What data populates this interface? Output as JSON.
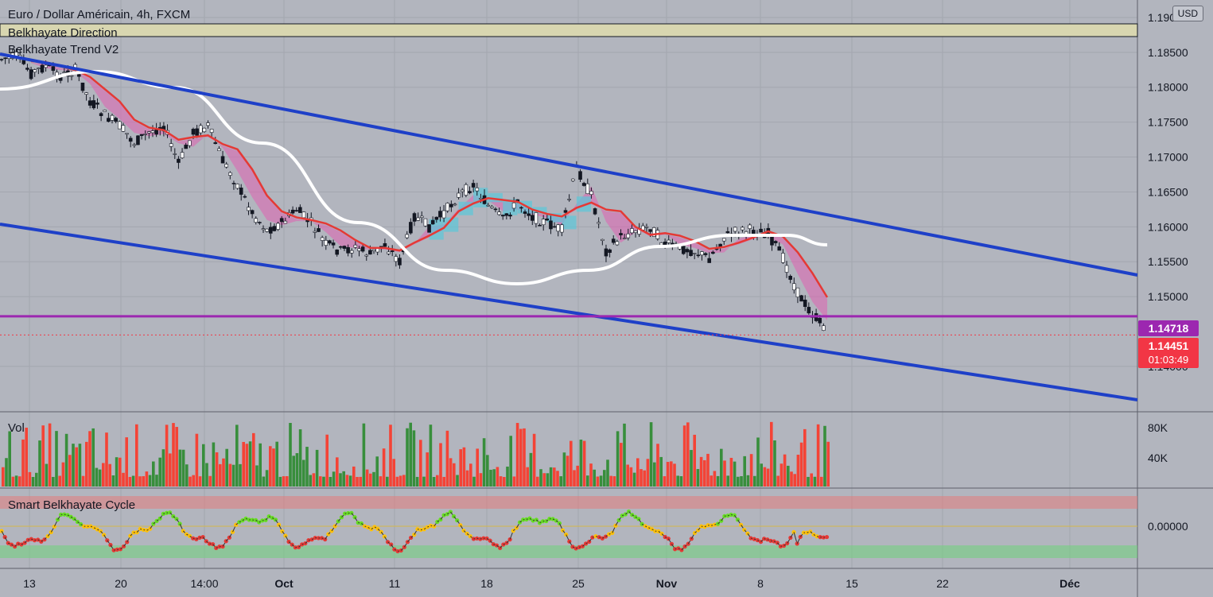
{
  "chart_data": {
    "type": "candlestick",
    "symbol": "Euro / Dollar Américain, 4h, FXCM",
    "indicators": [
      "Belkhayate Direction",
      "Belkhayate Trend V2",
      "Vol",
      "Smart Belkhayate Cycle"
    ],
    "currency": "USD",
    "price_axis": {
      "ticks": [
        "1.19000",
        "1.18500",
        "1.18000",
        "1.17500",
        "1.17000",
        "1.16500",
        "1.16000",
        "1.15500",
        "1.15000",
        "1.14000"
      ],
      "ylim": [
        1.1335,
        1.1925
      ]
    },
    "volume_axis": {
      "ticks": [
        "80K",
        "40K"
      ]
    },
    "cycle_axis": {
      "ticks": [
        "0.00000"
      ]
    },
    "time_axis": {
      "ticks": [
        "13",
        "20",
        "14:00",
        "Oct",
        "11",
        "18",
        "25",
        "Nov",
        "8",
        "15",
        "22",
        "Déc"
      ]
    },
    "horizontal_level": {
      "value": 1.14718,
      "label": "1.14718",
      "color": "#9c27b0"
    },
    "last_price": {
      "value": 1.14451,
      "label": "1.14451",
      "countdown": "01:03:49",
      "color": "#f23645"
    },
    "channel": {
      "color": "#1e40c8"
    },
    "price_path": [
      1.184,
      1.1845,
      1.182,
      1.183,
      1.1815,
      1.1825,
      1.178,
      1.176,
      1.1745,
      1.172,
      1.1735,
      1.1745,
      1.169,
      1.1735,
      1.1745,
      1.1695,
      1.166,
      1.162,
      1.1595,
      1.1605,
      1.1625,
      1.1605,
      1.1575,
      1.1565,
      1.157,
      1.156,
      1.1575,
      1.155,
      1.1615,
      1.16,
      1.162,
      1.1645,
      1.166,
      1.163,
      1.161,
      1.1635,
      1.1615,
      1.1605,
      1.1595,
      1.1685,
      1.1645,
      1.1565,
      1.1585,
      1.1595,
      1.16,
      1.1575,
      1.157,
      1.1565,
      1.1555,
      1.1585,
      1.1595,
      1.1595,
      1.159,
      1.1555,
      1.1505,
      1.1475,
      1.1452
    ]
  },
  "colors": {
    "up": "#26a69a",
    "candle": "#131722",
    "vol_up": "#388e3c",
    "vol_down": "#f44336",
    "trend_line": "#ffffff",
    "ma": "#e53935",
    "cloud_down": "#e060b0",
    "cloud_up": "#5bc8d8",
    "direction_band": "#d8d6b0"
  },
  "header": {
    "title": "Euro / Dollar Américain, 4h, FXCM",
    "direction": "Belkhayate Direction",
    "trend": "Belkhayate Trend V2",
    "vol": "Vol",
    "cycle": "Smart Belkhayate Cycle",
    "currency": "USD"
  }
}
